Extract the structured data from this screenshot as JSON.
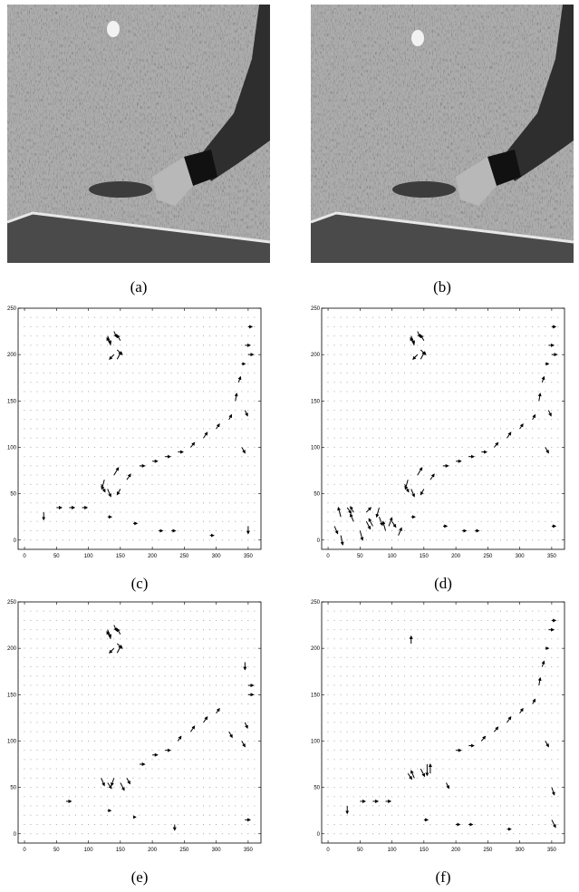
{
  "images": [
    {
      "caption": "(a)"
    },
    {
      "caption": "(b)"
    }
  ],
  "chart_data": [
    {
      "type": "quiver",
      "caption": "(c)",
      "xlim": [
        -10,
        370
      ],
      "ylim": [
        -10,
        250
      ],
      "xticks": [
        0,
        50,
        100,
        150,
        200,
        250,
        300,
        350
      ],
      "yticks": [
        0,
        50,
        100,
        150,
        200,
        250
      ],
      "color": "#000000",
      "x": [
        130,
        135,
        140,
        145,
        150,
        140,
        145,
        120,
        125,
        130,
        140,
        150,
        160,
        180,
        200,
        220,
        240,
        260,
        280,
        300,
        320,
        330,
        335,
        340,
        345,
        350,
        340,
        345,
        350,
        30,
        50,
        70,
        90,
        130,
        170,
        210,
        230,
        290,
        350
      ],
      "y": [
        220,
        210,
        225,
        205,
        215,
        200,
        195,
        60,
        65,
        55,
        70,
        55,
        65,
        80,
        85,
        90,
        95,
        100,
        110,
        120,
        130,
        150,
        170,
        190,
        210,
        230,
        100,
        140,
        200,
        30,
        35,
        35,
        35,
        25,
        18,
        10,
        10,
        5,
        15
      ],
      "u": [
        5,
        -6,
        4,
        8,
        -5,
        -7,
        6,
        6,
        -4,
        5,
        7,
        -5,
        6,
        8,
        8,
        8,
        8,
        6,
        6,
        5,
        4,
        2,
        3,
        5,
        8,
        6,
        5,
        4,
        8,
        0,
        8,
        8,
        8,
        6,
        6,
        6,
        6,
        6,
        0
      ],
      "v": [
        -8,
        8,
        -6,
        -5,
        6,
        -5,
        8,
        -8,
        -10,
        -8,
        8,
        -6,
        6,
        0,
        0,
        0,
        0,
        5,
        6,
        5,
        5,
        8,
        6,
        0,
        0,
        0,
        -6,
        -6,
        0,
        -8,
        0,
        0,
        0,
        0,
        0,
        0,
        0,
        0,
        -8
      ]
    },
    {
      "type": "quiver",
      "caption": "(d)",
      "xlim": [
        -10,
        370
      ],
      "ylim": [
        -10,
        250
      ],
      "xticks": [
        0,
        50,
        100,
        150,
        200,
        250,
        300,
        350
      ],
      "yticks": [
        0,
        50,
        100,
        150,
        200,
        250
      ],
      "color": "#000000",
      "x": [
        130,
        135,
        140,
        145,
        150,
        140,
        145,
        120,
        125,
        130,
        140,
        150,
        160,
        180,
        200,
        220,
        240,
        260,
        280,
        300,
        320,
        330,
        335,
        340,
        345,
        350,
        340,
        345,
        350,
        10,
        20,
        30,
        40,
        50,
        60,
        70,
        80,
        90,
        100,
        110,
        20,
        40,
        60,
        80,
        95,
        130,
        180,
        210,
        230,
        350
      ],
      "y": [
        220,
        210,
        225,
        205,
        215,
        200,
        195,
        60,
        65,
        55,
        70,
        55,
        65,
        80,
        85,
        90,
        95,
        100,
        110,
        120,
        130,
        150,
        170,
        190,
        210,
        230,
        100,
        140,
        200,
        15,
        25,
        35,
        20,
        10,
        30,
        15,
        25,
        10,
        20,
        5,
        5,
        30,
        20,
        35,
        15,
        25,
        15,
        10,
        10,
        15
      ],
      "u": [
        5,
        -6,
        4,
        8,
        -5,
        -7,
        6,
        6,
        -4,
        5,
        7,
        -5,
        6,
        8,
        8,
        8,
        8,
        6,
        6,
        5,
        4,
        2,
        3,
        5,
        8,
        6,
        5,
        4,
        8,
        5,
        -4,
        6,
        -5,
        4,
        7,
        -6,
        5,
        -4,
        6,
        5,
        3,
        -5,
        6,
        -4,
        5,
        6,
        6,
        6,
        6,
        6
      ],
      "v": [
        -8,
        8,
        -6,
        -5,
        6,
        -5,
        8,
        -8,
        -10,
        -8,
        8,
        -6,
        6,
        0,
        0,
        0,
        0,
        5,
        6,
        5,
        5,
        8,
        6,
        0,
        0,
        0,
        -6,
        -6,
        0,
        -8,
        10,
        -6,
        8,
        -10,
        5,
        8,
        -9,
        10,
        -6,
        8,
        -10,
        6,
        -8,
        -10,
        9,
        0,
        0,
        0,
        0,
        0
      ]
    },
    {
      "type": "quiver",
      "caption": "(e)",
      "xlim": [
        -10,
        370
      ],
      "ylim": [
        -10,
        250
      ],
      "xticks": [
        0,
        50,
        100,
        150,
        200,
        250,
        300,
        350
      ],
      "yticks": [
        0,
        50,
        100,
        150,
        200,
        250
      ],
      "color": "#000000",
      "x": [
        130,
        135,
        140,
        145,
        150,
        140,
        145,
        120,
        130,
        140,
        150,
        160,
        180,
        200,
        220,
        240,
        260,
        280,
        300,
        320,
        340,
        345,
        350,
        350,
        345,
        65,
        130,
        170,
        235,
        345
      ],
      "y": [
        220,
        210,
        225,
        205,
        215,
        200,
        195,
        60,
        55,
        60,
        55,
        60,
        75,
        85,
        90,
        100,
        110,
        120,
        130,
        110,
        100,
        185,
        160,
        150,
        120,
        35,
        25,
        18,
        10,
        15
      ],
      "u": [
        5,
        -6,
        4,
        8,
        -5,
        -7,
        6,
        5,
        6,
        -4,
        6,
        5,
        8,
        8,
        8,
        5,
        6,
        6,
        5,
        5,
        5,
        0,
        8,
        8,
        4,
        8,
        5,
        4,
        0,
        8
      ],
      "v": [
        -8,
        8,
        -6,
        -5,
        6,
        -5,
        8,
        -8,
        -6,
        -8,
        -8,
        -6,
        0,
        0,
        0,
        5,
        6,
        6,
        5,
        -6,
        -6,
        -8,
        0,
        0,
        -6,
        0,
        0,
        0,
        -6,
        0
      ]
    },
    {
      "type": "quiver",
      "caption": "(f)",
      "xlim": [
        -10,
        370
      ],
      "ylim": [
        -10,
        250
      ],
      "xticks": [
        0,
        50,
        100,
        150,
        200,
        250,
        300,
        350
      ],
      "yticks": [
        0,
        50,
        100,
        150,
        200,
        250
      ],
      "color": "#000000",
      "x": [
        130,
        125,
        135,
        145,
        155,
        160,
        185,
        200,
        220,
        240,
        260,
        280,
        300,
        320,
        330,
        335,
        340,
        345,
        350,
        340,
        350,
        30,
        50,
        70,
        90,
        150,
        200,
        220,
        280,
        350
      ],
      "y": [
        205,
        65,
        60,
        70,
        75,
        65,
        55,
        90,
        95,
        100,
        110,
        120,
        130,
        140,
        160,
        180,
        200,
        220,
        230,
        100,
        50,
        30,
        35,
        35,
        35,
        15,
        10,
        10,
        5,
        15
      ],
      "u": [
        0,
        6,
        -5,
        6,
        0,
        0,
        4,
        8,
        8,
        6,
        6,
        6,
        5,
        4,
        2,
        3,
        5,
        8,
        6,
        5,
        4,
        0,
        8,
        8,
        8,
        6,
        6,
        6,
        6,
        6
      ],
      "v": [
        8,
        -6,
        8,
        -8,
        -12,
        10,
        -6,
        0,
        0,
        5,
        5,
        6,
        5,
        5,
        8,
        6,
        0,
        0,
        0,
        -6,
        -8,
        -8,
        0,
        0,
        0,
        0,
        0,
        0,
        0,
        -8
      ]
    }
  ]
}
